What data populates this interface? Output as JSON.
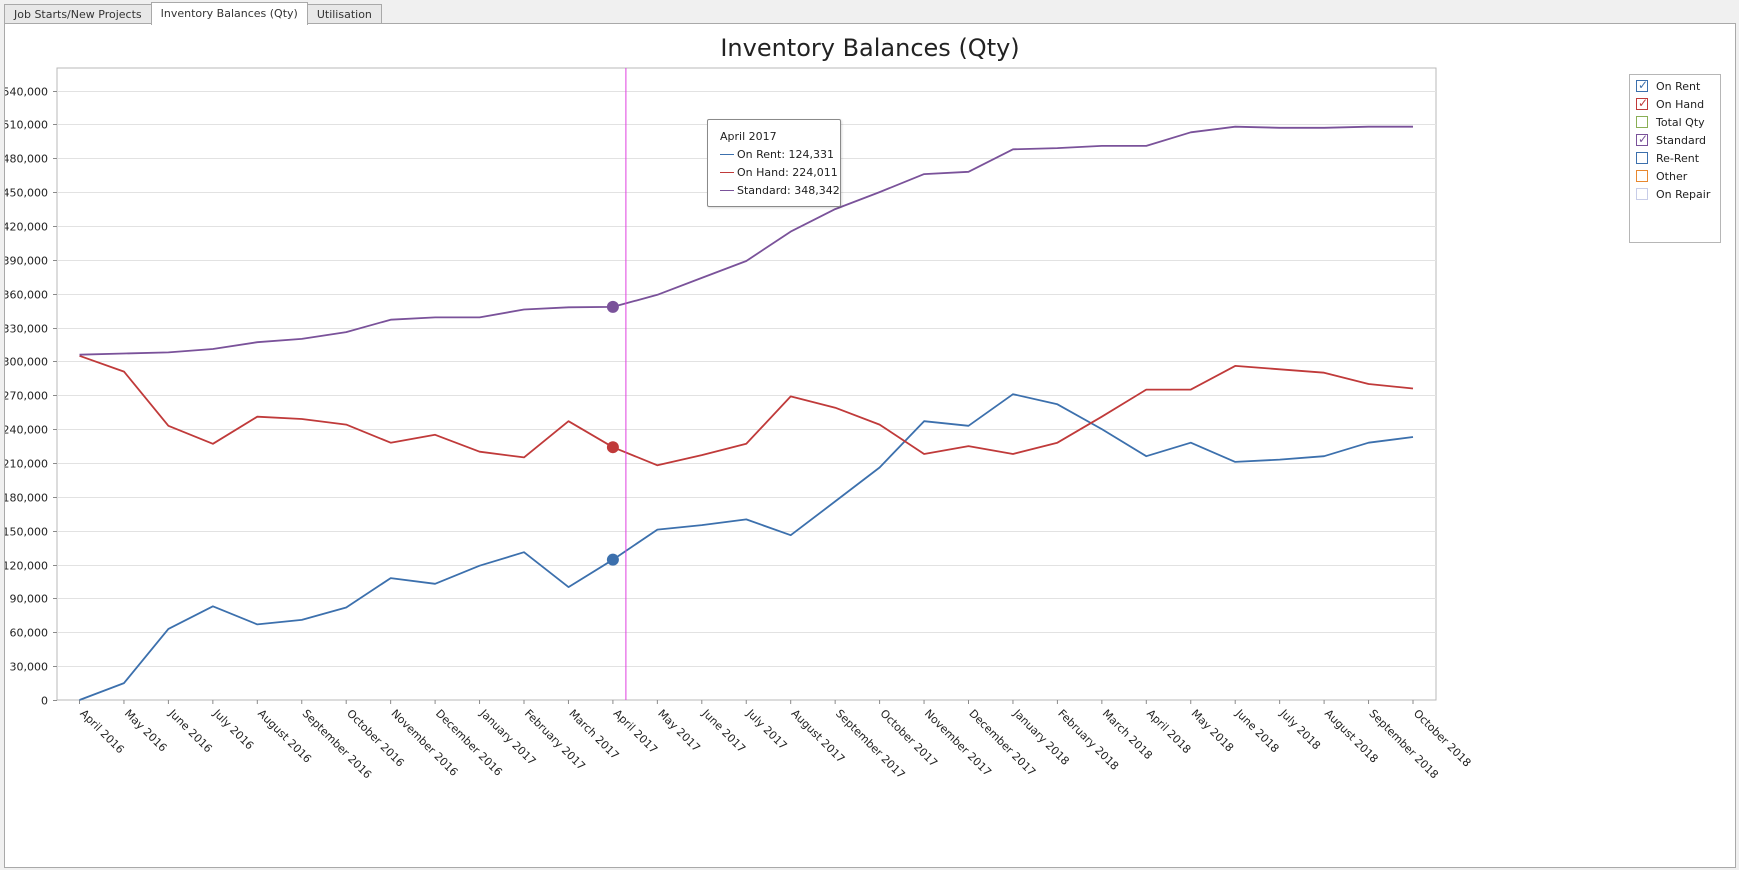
{
  "tabs": [
    {
      "label": "Job Starts/New Projects"
    },
    {
      "label": "Inventory Balances (Qty)"
    },
    {
      "label": "Utilisation"
    }
  ],
  "colors": {
    "on_rent": "#3c70ad",
    "on_hand": "#c03a3a",
    "standard": "#7a529a",
    "total_qty": "#8aaf55",
    "other": "#e8882f",
    "crosshair": "#e040e0"
  },
  "legend": {
    "items": [
      {
        "label": "On Rent",
        "checked": true,
        "color": "#3c70ad"
      },
      {
        "label": "On Hand",
        "checked": true,
        "color": "#c03a3a"
      },
      {
        "label": "Total Qty",
        "checked": false,
        "color": "#8aaf55"
      },
      {
        "label": "Standard",
        "checked": true,
        "color": "#7a529a"
      },
      {
        "label": "Re-Rent",
        "checked": false,
        "color": "#3c70ad"
      },
      {
        "label": "Other",
        "checked": false,
        "color": "#e8882f"
      },
      {
        "label": "On Repair",
        "checked": false,
        "color": "#c8cde8"
      }
    ]
  },
  "tooltip": {
    "title": "April 2017",
    "rows": [
      {
        "label": "On Rent: 124,331",
        "color": "#3c70ad"
      },
      {
        "label": "On Hand: 224,011",
        "color": "#c03a3a"
      },
      {
        "label": "Standard: 348,342",
        "color": "#7a529a"
      }
    ]
  },
  "chart_data": {
    "type": "line",
    "title": "Inventory Balances (Qty)",
    "ylim": [
      0,
      560000
    ],
    "yticks": [
      0,
      30000,
      60000,
      90000,
      120000,
      150000,
      180000,
      210000,
      240000,
      270000,
      300000,
      330000,
      360000,
      390000,
      420000,
      450000,
      480000,
      510000,
      540000
    ],
    "ytick_labels": [
      "0",
      "30,000",
      "60,000",
      "90,000",
      "120,000",
      "150,000",
      "180,000",
      "210,000",
      "240,000",
      "270,000",
      "300,000",
      "330,000",
      "360,000",
      "390,000",
      "420,000",
      "450,000",
      "480,000",
      "510,000",
      "540,000"
    ],
    "categories": [
      "April 2016",
      "May 2016",
      "June 2016",
      "July 2016",
      "August 2016",
      "September 2016",
      "October 2016",
      "November 2016",
      "December 2016",
      "January 2017",
      "February 2017",
      "March 2017",
      "April 2017",
      "May 2017",
      "June 2017",
      "July 2017",
      "August 2017",
      "September 2017",
      "October 2017",
      "November 2017",
      "December 2017",
      "January 2018",
      "February 2018",
      "March 2018",
      "April 2018",
      "May 2018",
      "June 2018",
      "July 2018",
      "August 2018",
      "September 2018",
      "October 2018"
    ],
    "series": [
      {
        "name": "On Rent",
        "color": "#3c70ad",
        "values": [
          0,
          15000,
          63000,
          83000,
          67000,
          71000,
          82000,
          108000,
          103000,
          119000,
          131000,
          100000,
          124331,
          151000,
          155000,
          160000,
          146000,
          176000,
          206000,
          247000,
          243000,
          271000,
          262000,
          240000,
          216000,
          228000,
          211000,
          213000,
          216000,
          228000,
          233000
        ]
      },
      {
        "name": "On Hand",
        "color": "#c03a3a",
        "values": [
          305000,
          291000,
          243000,
          227000,
          251000,
          249000,
          244000,
          228000,
          235000,
          220000,
          215000,
          247000,
          224011,
          208000,
          217000,
          227000,
          269000,
          259000,
          244000,
          218000,
          225000,
          218000,
          228000,
          251000,
          275000,
          275000,
          296000,
          293000,
          290000,
          280000,
          276000
        ]
      },
      {
        "name": "Standard",
        "color": "#7a529a",
        "values": [
          306000,
          307000,
          308000,
          311000,
          317000,
          320000,
          326000,
          337000,
          339000,
          339000,
          346000,
          348000,
          348342,
          359000,
          374000,
          389000,
          415000,
          435000,
          450000,
          466000,
          468000,
          488000,
          489000,
          491000,
          491000,
          503000,
          508000,
          507000,
          507000,
          508000,
          508000
        ]
      }
    ],
    "highlight_index": 12,
    "grid": true,
    "legend_position": "right"
  }
}
